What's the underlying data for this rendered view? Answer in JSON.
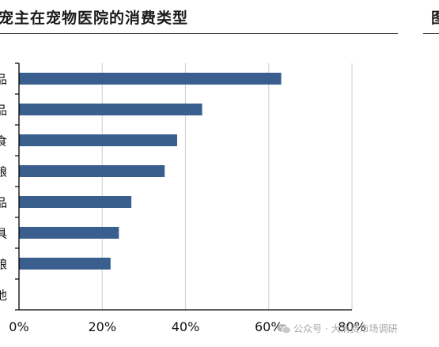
{
  "title": "宠主在宠物医院的消费类型",
  "next_panel_title": "图",
  "watermark": "公众号 · 大消费市场调研",
  "chart_data": {
    "type": "bar",
    "orientation": "horizontal",
    "title": "宠主在宠物医院的消费类型",
    "categories": [
      "品",
      "品",
      "食",
      "粮",
      "品",
      "具",
      "粮",
      "他"
    ],
    "values": [
      63,
      44,
      38,
      35,
      27,
      24,
      22,
      0
    ],
    "xlim": [
      0,
      80
    ],
    "xticks": [
      "0%",
      "20%",
      "40%",
      "60%",
      "80%"
    ],
    "xlabel": "",
    "ylabel": "",
    "grid": "vertical",
    "bar_color": "#3a5f8f"
  }
}
